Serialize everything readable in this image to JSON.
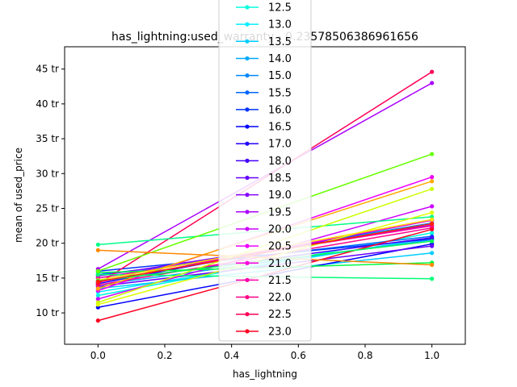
{
  "chart_data": {
    "type": "line",
    "title": "has_lightning:used_warranty - 0.23578506386961656",
    "xlabel": "has_lightning",
    "ylabel": "mean of used_price",
    "xlim": [
      -0.1,
      1.1
    ],
    "ylim": [
      5.5,
      48.2
    ],
    "x_ticks": [
      0.0,
      0.2,
      0.4,
      0.6,
      0.8,
      1.0
    ],
    "x_tick_labels": [
      "0.0",
      "0.2",
      "0.4",
      "0.6",
      "0.8",
      "1.0"
    ],
    "y_ticks": [
      10,
      15,
      20,
      25,
      30,
      35,
      40,
      45
    ],
    "y_tick_labels": [
      "10 tr",
      "15 tr",
      "20 tr",
      "25 tr",
      "30 tr",
      "35 tr",
      "40 tr",
      "45 tr"
    ],
    "grid": false,
    "legend_position": "top-center",
    "x": [
      0,
      1
    ],
    "series": [
      {
        "name": "12.5",
        "color": "#00ffdd",
        "values": [
          12.5,
          21.5
        ]
      },
      {
        "name": "13.0",
        "color": "#00eeff",
        "values": [
          13.0,
          20.8
        ]
      },
      {
        "name": "13.5",
        "color": "#00ccff",
        "values": [
          13.5,
          18.6
        ]
      },
      {
        "name": "14.0",
        "color": "#00aaff",
        "values": [
          14.0,
          20.5
        ]
      },
      {
        "name": "15.0",
        "color": "#0088ff",
        "values": [
          15.0,
          22.9
        ]
      },
      {
        "name": "15.5",
        "color": "#0066ff",
        "values": [
          15.5,
          21.0
        ]
      },
      {
        "name": "16.0",
        "color": "#0033ff",
        "values": [
          16.0,
          20.6
        ]
      },
      {
        "name": "16.5",
        "color": "#0000ff",
        "values": [
          10.8,
          19.9
        ]
      },
      {
        "name": "17.0",
        "color": "#2200ff",
        "values": [
          14.2,
          23.3
        ]
      },
      {
        "name": "18.0",
        "color": "#4400ff",
        "values": [
          14.5,
          20.8
        ]
      },
      {
        "name": "18.5",
        "color": "#6600ff",
        "values": [
          13.8,
          19.6
        ]
      },
      {
        "name": "19.0",
        "color": "#8800ff",
        "values": [
          15.3,
          22.6
        ]
      },
      {
        "name": "19.5",
        "color": "#aa00ff",
        "values": [
          16.3,
          43.0
        ]
      },
      {
        "name": "20.0",
        "color": "#cc00ff",
        "values": [
          12.0,
          25.3
        ]
      },
      {
        "name": "20.5",
        "color": "#ee00ff",
        "values": [
          13.2,
          29.5
        ]
      },
      {
        "name": "21.0",
        "color": "#ff00dd",
        "values": [
          14.4,
          23.3
        ]
      },
      {
        "name": "21.5",
        "color": "#ff00aa",
        "values": [
          15.0,
          22.5
        ]
      },
      {
        "name": "22.0",
        "color": "#ff0088",
        "values": [
          14.0,
          22.2
        ]
      },
      {
        "name": "22.5",
        "color": "#ff0055",
        "values": [
          14.2,
          44.6
        ]
      },
      {
        "name": "23.0",
        "color": "#ff0022",
        "values": [
          8.9,
          22.0
        ]
      }
    ],
    "unlabeled_series": [
      {
        "color": "#00ff88",
        "values": [
          19.8,
          23.8
        ]
      },
      {
        "color": "#00ff44",
        "values": [
          15.8,
          17.2
        ]
      },
      {
        "color": "#00ff77",
        "values": [
          15.5,
          14.9
        ]
      },
      {
        "color": "#66ff00",
        "values": [
          16.0,
          32.8
        ]
      },
      {
        "color": "#ccff00",
        "values": [
          11.5,
          27.8
        ]
      },
      {
        "color": "#ddff00",
        "values": [
          11.2,
          24.4
        ]
      },
      {
        "color": "#ffaa00",
        "values": [
          13.5,
          28.9
        ]
      },
      {
        "color": "#ff8800",
        "values": [
          19.0,
          16.9
        ]
      },
      {
        "color": "#ffdd00",
        "values": [
          14.7,
          23.4
        ]
      },
      {
        "color": "#00ff55",
        "values": [
          14.6,
          20.3
        ]
      },
      {
        "color": "#ff2200",
        "values": [
          14.5,
          22.8
        ]
      }
    ]
  }
}
